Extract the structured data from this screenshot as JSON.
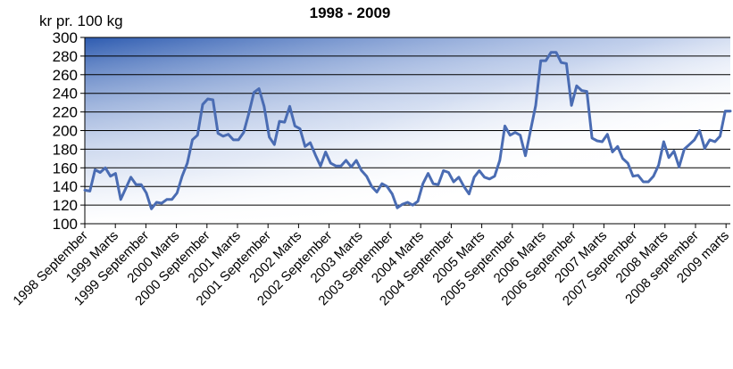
{
  "chart_data": {
    "type": "line",
    "title": "1998 - 2009",
    "xlabel": "",
    "ylabel": "kr pr. 100 kg",
    "ylim": [
      100,
      300
    ],
    "yticks": [
      100,
      120,
      140,
      160,
      180,
      200,
      220,
      240,
      260,
      280,
      300
    ],
    "grid": true,
    "legend": "none",
    "colors": {
      "line": "#4a6cb3",
      "gradient": "#2d5bb0",
      "grid": "#000000"
    },
    "xtick_labels": [
      "1998 September",
      "1999 Marts",
      "1999 September",
      "2000 Marts",
      "2000 September",
      "2001 Marts",
      "2001 September",
      "2002 Marts",
      "2002 September",
      "2003 Marts",
      "2003 September",
      "2004 Marts",
      "2004 September",
      "2005 Marts",
      "2005 September",
      "2006 Marts",
      "2006 September",
      "2007 Marts",
      "2007 September",
      "2008 Marts",
      "2008 september",
      "2009 marts"
    ],
    "series": [
      {
        "values": [
          136,
          135,
          158,
          155,
          160,
          151,
          154,
          126,
          138,
          150,
          142,
          142,
          133,
          116,
          123,
          122,
          126,
          126,
          133,
          151,
          165,
          190,
          195,
          228,
          234,
          233,
          197,
          194,
          196,
          190,
          190,
          198,
          218,
          241,
          245,
          226,
          193,
          185,
          210,
          209,
          226,
          205,
          202,
          183,
          187,
          174,
          162,
          177,
          165,
          162,
          162,
          168,
          161,
          168,
          157,
          151,
          140,
          134,
          143,
          140,
          132,
          117,
          121,
          123,
          120,
          124,
          143,
          154,
          143,
          142,
          157,
          155,
          145,
          150,
          140,
          132,
          150,
          157,
          150,
          148,
          151,
          168,
          205,
          195,
          198,
          195,
          173,
          200,
          227,
          275,
          275,
          284,
          284,
          273,
          272,
          227,
          248,
          243,
          242,
          192,
          189,
          188,
          196,
          177,
          183,
          170,
          165,
          151,
          152,
          145,
          145,
          151,
          163,
          188,
          171,
          178,
          161,
          180,
          185,
          190,
          200,
          181,
          190,
          188,
          194,
          221,
          221
        ]
      }
    ]
  }
}
